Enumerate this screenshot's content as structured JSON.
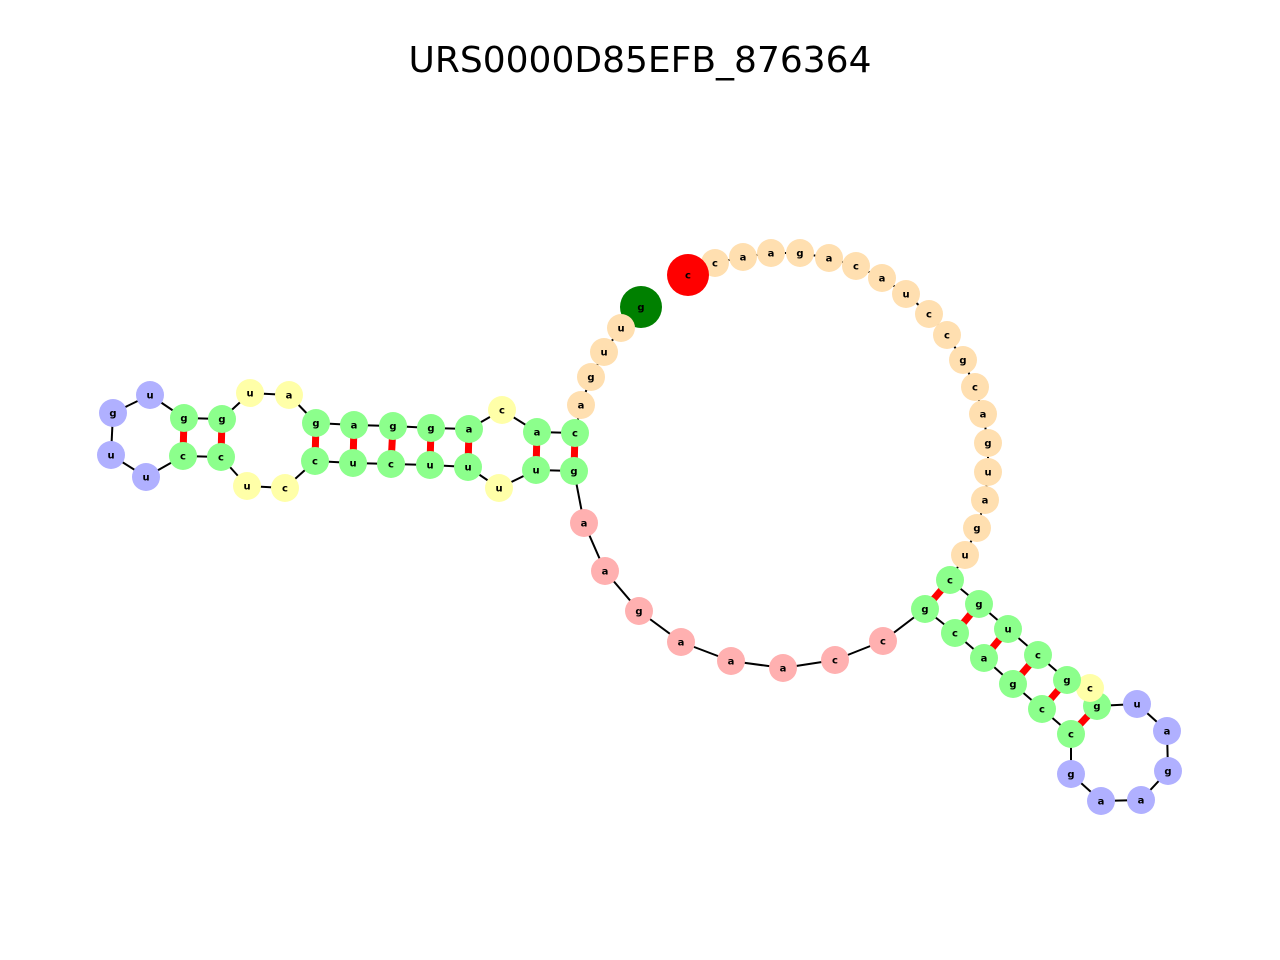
{
  "title": "URS0000D85EFB_876364",
  "colors": {
    "stem": "#8cff8c",
    "interior_loop": "#ffffa8",
    "hairpin": "#b0b0ff",
    "external": "#ffdfb0",
    "multiloop": "#ffb0b0",
    "start": "#008000",
    "end": "#ff0000",
    "pair_line": "#ff0000",
    "backbone": "#000000"
  },
  "nucleotides": [
    {
      "b": "g",
      "t": "start"
    },
    {
      "b": "u",
      "t": "external"
    },
    {
      "b": "u",
      "t": "external"
    },
    {
      "b": "g",
      "t": "external"
    },
    {
      "b": "a",
      "t": "external"
    },
    {
      "b": "c",
      "t": "stem"
    },
    {
      "b": "a",
      "t": "stem"
    },
    {
      "b": "c",
      "t": "interior_loop"
    },
    {
      "b": "a",
      "t": "stem"
    },
    {
      "b": "g",
      "t": "stem"
    },
    {
      "b": "g",
      "t": "stem"
    },
    {
      "b": "a",
      "t": "stem"
    },
    {
      "b": "g",
      "t": "stem"
    },
    {
      "b": "a",
      "t": "interior_loop"
    },
    {
      "b": "u",
      "t": "interior_loop"
    },
    {
      "b": "g",
      "t": "stem"
    },
    {
      "b": "g",
      "t": "stem"
    },
    {
      "b": "u",
      "t": "hairpin"
    },
    {
      "b": "g",
      "t": "hairpin"
    },
    {
      "b": "u",
      "t": "hairpin"
    },
    {
      "b": "u",
      "t": "hairpin"
    },
    {
      "b": "c",
      "t": "stem"
    },
    {
      "b": "c",
      "t": "stem"
    },
    {
      "b": "u",
      "t": "interior_loop"
    },
    {
      "b": "c",
      "t": "interior_loop"
    },
    {
      "b": "c",
      "t": "stem"
    },
    {
      "b": "u",
      "t": "stem"
    },
    {
      "b": "c",
      "t": "stem"
    },
    {
      "b": "u",
      "t": "stem"
    },
    {
      "b": "u",
      "t": "stem"
    },
    {
      "b": "u",
      "t": "interior_loop"
    },
    {
      "b": "u",
      "t": "stem"
    },
    {
      "b": "g",
      "t": "stem"
    },
    {
      "b": "a",
      "t": "multiloop"
    },
    {
      "b": "a",
      "t": "multiloop"
    },
    {
      "b": "g",
      "t": "multiloop"
    },
    {
      "b": "a",
      "t": "multiloop"
    },
    {
      "b": "a",
      "t": "multiloop"
    },
    {
      "b": "a",
      "t": "multiloop"
    },
    {
      "b": "c",
      "t": "multiloop"
    },
    {
      "b": "c",
      "t": "multiloop"
    },
    {
      "b": "g",
      "t": "stem"
    },
    {
      "b": "c",
      "t": "stem"
    },
    {
      "b": "a",
      "t": "stem"
    },
    {
      "b": "g",
      "t": "stem"
    },
    {
      "b": "c",
      "t": "stem"
    },
    {
      "b": "c",
      "t": "stem"
    },
    {
      "b": "g",
      "t": "hairpin"
    },
    {
      "b": "a",
      "t": "hairpin"
    },
    {
      "b": "a",
      "t": "hairpin"
    },
    {
      "b": "g",
      "t": "hairpin"
    },
    {
      "b": "a",
      "t": "hairpin"
    },
    {
      "b": "u",
      "t": "hairpin"
    },
    {
      "b": "g",
      "t": "stem"
    },
    {
      "b": "c",
      "t": "interior_loop"
    },
    {
      "b": "g",
      "t": "stem"
    },
    {
      "b": "c",
      "t": "stem"
    },
    {
      "b": "u",
      "t": "stem"
    },
    {
      "b": "g",
      "t": "stem"
    },
    {
      "b": "c",
      "t": "stem"
    },
    {
      "b": "u",
      "t": "external"
    },
    {
      "b": "g",
      "t": "external"
    },
    {
      "b": "a",
      "t": "external"
    },
    {
      "b": "u",
      "t": "external"
    },
    {
      "b": "g",
      "t": "external"
    },
    {
      "b": "a",
      "t": "external"
    },
    {
      "b": "c",
      "t": "external"
    },
    {
      "b": "g",
      "t": "external"
    },
    {
      "b": "c",
      "t": "external"
    },
    {
      "b": "c",
      "t": "external"
    },
    {
      "b": "u",
      "t": "external"
    },
    {
      "b": "a",
      "t": "external"
    },
    {
      "b": "c",
      "t": "external"
    },
    {
      "b": "a",
      "t": "external"
    },
    {
      "b": "g",
      "t": "external"
    },
    {
      "b": "a",
      "t": "external"
    },
    {
      "b": "a",
      "t": "external"
    },
    {
      "b": "c",
      "t": "external"
    },
    {
      "b": "c",
      "t": "end"
    }
  ],
  "pairs": [
    [
      5,
      32
    ],
    [
      6,
      31
    ],
    [
      8,
      29
    ],
    [
      9,
      28
    ],
    [
      10,
      27
    ],
    [
      11,
      26
    ],
    [
      12,
      25
    ],
    [
      15,
      22
    ],
    [
      16,
      21
    ],
    [
      41,
      59
    ],
    [
      42,
      58
    ],
    [
      43,
      57
    ],
    [
      44,
      56
    ],
    [
      45,
      55
    ],
    [
      46,
      53
    ]
  ]
}
